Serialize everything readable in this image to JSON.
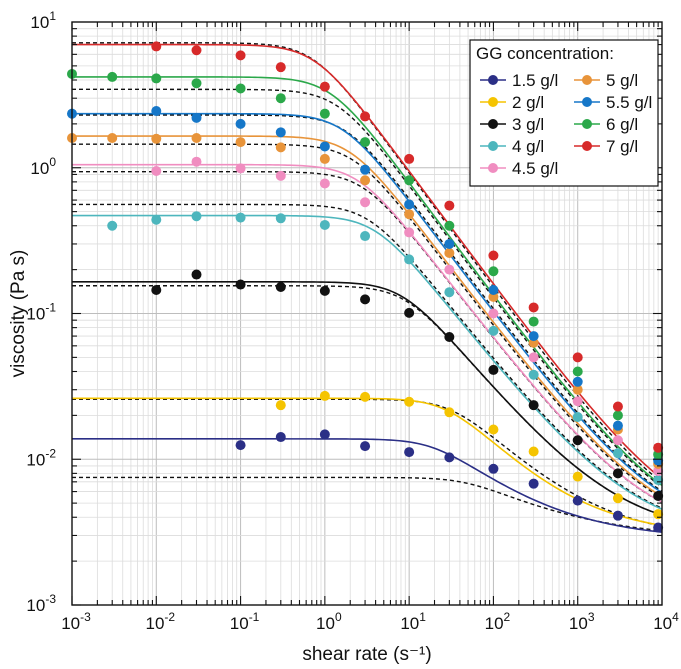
{
  "chart_data": {
    "type": "scatter",
    "title": "",
    "xlabel": "shear rate (s⁻¹)",
    "ylabel": "viscosity (Pa s)",
    "x_scale": "log",
    "y_scale": "log",
    "xlim": [
      0.001,
      10000
    ],
    "ylim": [
      0.001,
      10
    ],
    "grid": true,
    "x_ticks": [
      {
        "value": 0.001,
        "base": "10",
        "exp": "-3"
      },
      {
        "value": 0.01,
        "base": "10",
        "exp": "-2"
      },
      {
        "value": 0.1,
        "base": "10",
        "exp": "-1"
      },
      {
        "value": 1,
        "base": "10",
        "exp": "0"
      },
      {
        "value": 10,
        "base": "10",
        "exp": "1"
      },
      {
        "value": 100,
        "base": "10",
        "exp": "2"
      },
      {
        "value": 1000,
        "base": "10",
        "exp": "3"
      },
      {
        "value": 10000,
        "base": "10",
        "exp": "4"
      }
    ],
    "y_ticks": [
      {
        "value": 0.001,
        "base": "10",
        "exp": "-3"
      },
      {
        "value": 0.01,
        "base": "10",
        "exp": "-2"
      },
      {
        "value": 0.1,
        "base": "10",
        "exp": "-1"
      },
      {
        "value": 1,
        "base": "10",
        "exp": "0"
      },
      {
        "value": 10,
        "base": "10",
        "exp": "1"
      }
    ],
    "legend": {
      "title": "GG concentration:",
      "position": "top-right",
      "columns": 2
    },
    "series": [
      {
        "name": "1.5 g/l",
        "color": "#2b2f86",
        "points": [
          [
            0.1,
            0.0125
          ],
          [
            0.3,
            0.0142
          ],
          [
            1,
            0.0148
          ],
          [
            3,
            0.0123
          ],
          [
            10,
            0.0112
          ],
          [
            30,
            0.0103
          ],
          [
            100,
            0.0086
          ],
          [
            300,
            0.0068
          ],
          [
            1000,
            0.0052
          ],
          [
            3000,
            0.0041
          ],
          [
            9000,
            0.0034
          ]
        ],
        "model": {
          "eta0": 0.0138,
          "etainf": 0.0028,
          "lambda": 0.05,
          "n": 0.45
        },
        "dashed": {
          "eta0": 0.0075,
          "etainf": 0.0028,
          "lambda": 0.02,
          "n": 0.55
        }
      },
      {
        "name": "2 g/l",
        "color": "#f5c400",
        "points": [
          [
            0.3,
            0.0235
          ],
          [
            1,
            0.0272
          ],
          [
            3,
            0.0268
          ],
          [
            10,
            0.0248
          ],
          [
            30,
            0.021
          ],
          [
            100,
            0.016
          ],
          [
            300,
            0.0113
          ],
          [
            1000,
            0.0076
          ],
          [
            3000,
            0.0054
          ],
          [
            9000,
            0.0042
          ]
        ],
        "model": {
          "eta0": 0.0262,
          "etainf": 0.003,
          "lambda": 0.035,
          "n": 0.35
        },
        "dashed": {
          "eta0": 0.0258,
          "etainf": 0.0028,
          "lambda": 0.03,
          "n": 0.38
        }
      },
      {
        "name": "3 g/l",
        "color": "#111111",
        "points": [
          [
            0.01,
            0.145
          ],
          [
            0.03,
            0.185
          ],
          [
            0.1,
            0.158
          ],
          [
            0.3,
            0.152
          ],
          [
            1,
            0.143
          ],
          [
            3,
            0.125
          ],
          [
            10,
            0.101
          ],
          [
            30,
            0.069
          ],
          [
            100,
            0.041
          ],
          [
            300,
            0.0235
          ],
          [
            1000,
            0.0135
          ],
          [
            3000,
            0.008
          ],
          [
            9000,
            0.0056
          ]
        ],
        "model": {
          "eta0": 0.165,
          "etainf": 0.003,
          "lambda": 0.12,
          "n": 0.3
        },
        "dashed": {
          "eta0": 0.155,
          "etainf": 0.003,
          "lambda": 0.11,
          "n": 0.3
        }
      },
      {
        "name": "4 g/l",
        "color": "#4db6bd",
        "points": [
          [
            0.003,
            0.4
          ],
          [
            0.01,
            0.44
          ],
          [
            0.03,
            0.465
          ],
          [
            0.1,
            0.455
          ],
          [
            0.3,
            0.45
          ],
          [
            1,
            0.405
          ],
          [
            3,
            0.34
          ],
          [
            10,
            0.235
          ],
          [
            30,
            0.14
          ],
          [
            100,
            0.076
          ],
          [
            300,
            0.038
          ],
          [
            1000,
            0.0195
          ],
          [
            3000,
            0.011
          ],
          [
            9000,
            0.0072
          ]
        ],
        "model": {
          "eta0": 0.47,
          "etainf": 0.003,
          "lambda": 0.25,
          "n": 0.27
        },
        "dashed": {
          "eta0": 0.56,
          "etainf": 0.003,
          "lambda": 0.3,
          "n": 0.27
        }
      },
      {
        "name": "4.5 g/l",
        "color": "#f08dc0",
        "points": [
          [
            0.01,
            0.95
          ],
          [
            0.03,
            1.1
          ],
          [
            0.1,
            0.99
          ],
          [
            0.3,
            0.88
          ],
          [
            1,
            0.78
          ],
          [
            3,
            0.58
          ],
          [
            10,
            0.36
          ],
          [
            30,
            0.2
          ],
          [
            100,
            0.1
          ],
          [
            300,
            0.05
          ],
          [
            1000,
            0.025
          ],
          [
            3000,
            0.0135
          ],
          [
            9000,
            0.0083
          ]
        ],
        "model": {
          "eta0": 1.05,
          "etainf": 0.003,
          "lambda": 0.4,
          "n": 0.25
        },
        "dashed": {
          "eta0": 0.94,
          "etainf": 0.003,
          "lambda": 0.35,
          "n": 0.25
        }
      },
      {
        "name": "5 g/l",
        "color": "#e8943a",
        "points": [
          [
            0.001,
            1.6
          ],
          [
            0.003,
            1.6
          ],
          [
            0.01,
            1.58
          ],
          [
            0.03,
            1.6
          ],
          [
            0.1,
            1.5
          ],
          [
            0.3,
            1.38
          ],
          [
            1,
            1.15
          ],
          [
            3,
            0.82
          ],
          [
            10,
            0.48
          ],
          [
            30,
            0.26
          ],
          [
            100,
            0.13
          ],
          [
            300,
            0.063
          ],
          [
            1000,
            0.03
          ],
          [
            3000,
            0.016
          ],
          [
            9000,
            0.0093
          ]
        ],
        "model": {
          "eta0": 1.65,
          "etainf": 0.003,
          "lambda": 0.5,
          "n": 0.24
        },
        "dashed": {
          "eta0": 1.45,
          "etainf": 0.003,
          "lambda": 0.45,
          "n": 0.24
        }
      },
      {
        "name": "5.5 g/l",
        "color": "#1677c8",
        "points": [
          [
            0.001,
            2.35
          ],
          [
            0.01,
            2.45
          ],
          [
            0.03,
            2.2
          ],
          [
            0.1,
            2.0
          ],
          [
            0.3,
            1.75
          ],
          [
            1,
            1.4
          ],
          [
            3,
            0.97
          ],
          [
            10,
            0.56
          ],
          [
            30,
            0.3
          ],
          [
            100,
            0.145
          ],
          [
            300,
            0.07
          ],
          [
            1000,
            0.034
          ],
          [
            3000,
            0.017
          ],
          [
            9000,
            0.0098
          ]
        ],
        "model": {
          "eta0": 2.35,
          "etainf": 0.003,
          "lambda": 0.6,
          "n": 0.23
        },
        "dashed": {
          "eta0": 2.3,
          "etainf": 0.003,
          "lambda": 0.55,
          "n": 0.23
        }
      },
      {
        "name": "6 g/l",
        "color": "#2ba84a",
        "points": [
          [
            0.001,
            4.4
          ],
          [
            0.003,
            4.2
          ],
          [
            0.01,
            4.1
          ],
          [
            0.03,
            3.8
          ],
          [
            0.1,
            3.5
          ],
          [
            0.3,
            3.0
          ],
          [
            1,
            2.35
          ],
          [
            3,
            1.5
          ],
          [
            10,
            0.82
          ],
          [
            30,
            0.4
          ],
          [
            100,
            0.195
          ],
          [
            300,
            0.088
          ],
          [
            1000,
            0.04
          ],
          [
            3000,
            0.02
          ],
          [
            9000,
            0.0108
          ]
        ],
        "model": {
          "eta0": 4.2,
          "etainf": 0.003,
          "lambda": 0.85,
          "n": 0.22
        },
        "dashed": {
          "eta0": 3.45,
          "etainf": 0.003,
          "lambda": 0.7,
          "n": 0.22
        }
      },
      {
        "name": "7 g/l",
        "color": "#d72a2a",
        "points": [
          [
            0.01,
            6.8
          ],
          [
            0.03,
            6.4
          ],
          [
            0.1,
            5.9
          ],
          [
            0.3,
            4.9
          ],
          [
            1,
            3.6
          ],
          [
            3,
            2.25
          ],
          [
            10,
            1.15
          ],
          [
            30,
            0.55
          ],
          [
            100,
            0.25
          ],
          [
            300,
            0.11
          ],
          [
            1000,
            0.05
          ],
          [
            3000,
            0.023
          ],
          [
            9000,
            0.012
          ]
        ],
        "model": {
          "eta0": 7.0,
          "etainf": 0.003,
          "lambda": 1.3,
          "n": 0.22
        },
        "dashed": {
          "eta0": 7.2,
          "etainf": 0.003,
          "lambda": 1.35,
          "n": 0.21
        }
      }
    ]
  }
}
